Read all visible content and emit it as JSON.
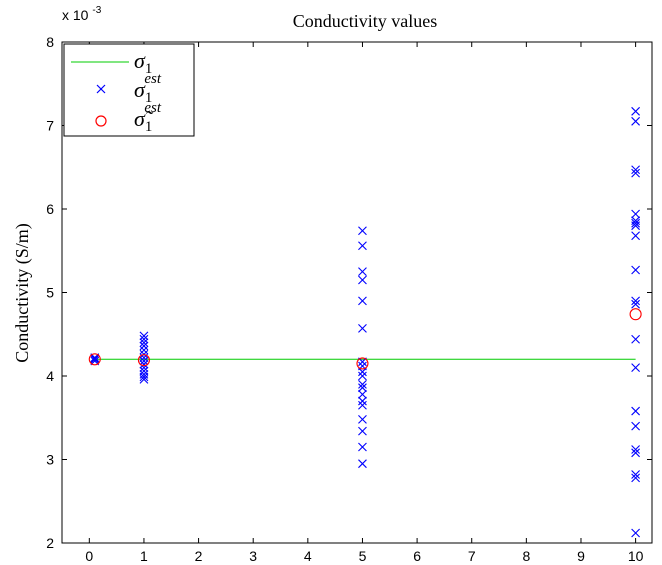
{
  "chart_data": {
    "type": "scatter",
    "title": "Conductivity values",
    "ylabel": "Conductivity (S/m)",
    "xlabel": "",
    "y_exponent_label": "x 10",
    "y_exponent": "-3",
    "xlim": [
      -0.5,
      10.3
    ],
    "ylim": [
      2,
      8
    ],
    "xticks": [
      "0",
      "1",
      "2",
      "3",
      "4",
      "5",
      "6",
      "7",
      "8",
      "9",
      "10"
    ],
    "yticks": [
      "2",
      "3",
      "4",
      "5",
      "6",
      "7",
      "8"
    ],
    "grid": false,
    "legend": {
      "placement": "top-left",
      "entries": [
        {
          "symbol": "σ",
          "sub": "1",
          "sup": ""
        },
        {
          "symbol": "σ",
          "sub": "1",
          "sup": "est"
        },
        {
          "symbol": "σ̃",
          "sub": "1",
          "sup": "est"
        }
      ]
    },
    "series": [
      {
        "name": "σ1",
        "kind": "line",
        "color": "#00cc00",
        "points": [
          [
            0.1,
            4.2
          ],
          [
            10,
            4.2
          ]
        ]
      },
      {
        "name": "σ1 est",
        "kind": "x-marker",
        "color": "#0000ff",
        "points": [
          [
            0.1,
            4.2
          ],
          [
            0.1,
            4.22
          ],
          [
            0.1,
            4.18
          ],
          [
            0.1,
            4.21
          ],
          [
            1,
            4.48
          ],
          [
            1,
            4.44
          ],
          [
            1,
            4.4
          ],
          [
            1,
            4.36
          ],
          [
            1,
            4.31
          ],
          [
            1,
            4.26
          ],
          [
            1,
            4.22
          ],
          [
            1,
            4.18
          ],
          [
            1,
            4.14
          ],
          [
            1,
            4.1
          ],
          [
            1,
            4.06
          ],
          [
            1,
            4.02
          ],
          [
            1,
            3.99
          ],
          [
            1,
            3.96
          ],
          [
            5,
            5.74
          ],
          [
            5,
            5.56
          ],
          [
            5,
            5.25
          ],
          [
            5,
            5.15
          ],
          [
            5,
            4.9
          ],
          [
            5,
            4.57
          ],
          [
            5,
            4.17
          ],
          [
            5,
            4.12
          ],
          [
            5,
            4.05
          ],
          [
            5,
            4.0
          ],
          [
            5,
            3.9
          ],
          [
            5,
            3.86
          ],
          [
            5,
            3.78
          ],
          [
            5,
            3.7
          ],
          [
            5,
            3.65
          ],
          [
            5,
            3.48
          ],
          [
            5,
            3.34
          ],
          [
            5,
            3.15
          ],
          [
            5,
            2.95
          ],
          [
            10,
            7.17
          ],
          [
            10,
            7.05
          ],
          [
            10,
            6.47
          ],
          [
            10,
            6.43
          ],
          [
            10,
            5.94
          ],
          [
            10,
            5.86
          ],
          [
            10,
            5.83
          ],
          [
            10,
            5.8
          ],
          [
            10,
            5.68
          ],
          [
            10,
            5.27
          ],
          [
            10,
            4.9
          ],
          [
            10,
            4.86
          ],
          [
            10,
            4.44
          ],
          [
            10,
            4.1
          ],
          [
            10,
            3.58
          ],
          [
            10,
            3.4
          ],
          [
            10,
            3.12
          ],
          [
            10,
            3.08
          ],
          [
            10,
            2.82
          ],
          [
            10,
            2.78
          ],
          [
            10,
            2.12
          ]
        ]
      },
      {
        "name": "σ̃1 est",
        "kind": "circle-marker",
        "color": "#ff0000",
        "points": [
          [
            0.1,
            4.2
          ],
          [
            1,
            4.19
          ],
          [
            5,
            4.15
          ],
          [
            10,
            4.74
          ]
        ]
      }
    ]
  }
}
